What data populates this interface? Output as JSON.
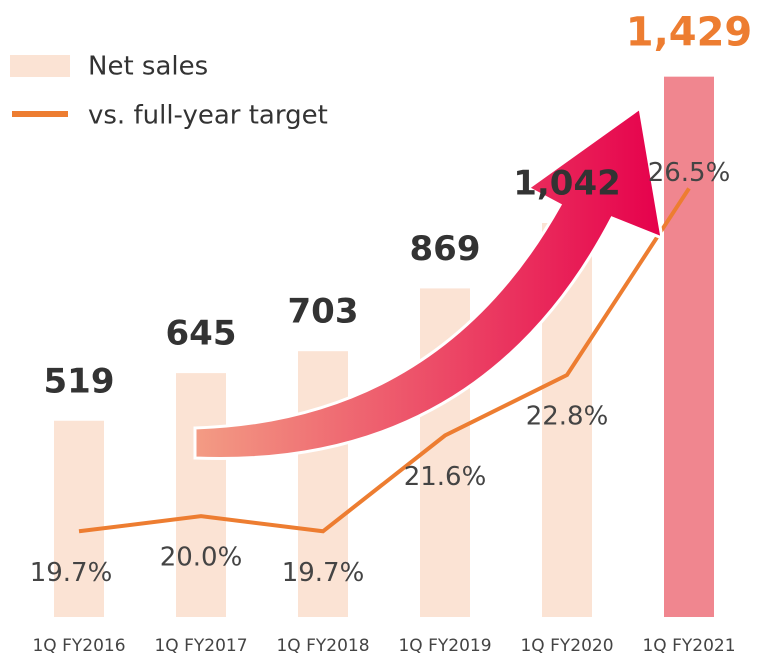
{
  "chart_data": {
    "type": "bar",
    "categories": [
      "1Q FY2016",
      "1Q FY2017",
      "1Q FY2018",
      "1Q FY2019",
      "1Q FY2020",
      "1Q FY2021"
    ],
    "series": [
      {
        "name": "Net sales",
        "color": "#fbe3d4",
        "colors": [
          "#fbe3d4",
          "#fbe3d4",
          "#fbe3d4",
          "#fbe3d4",
          "#fbe3d4",
          "#f0868f"
        ],
        "label_colors": [
          "#333333",
          "#333333",
          "#333333",
          "#333333",
          "#333333",
          "#ed7d31"
        ],
        "values": [
          519,
          645,
          703,
          869,
          1042,
          1429
        ],
        "value_labels": [
          "519",
          "645",
          "703",
          "869",
          "1,042",
          "1,429"
        ]
      },
      {
        "name": "vs. full-year target",
        "color": "#ed7d31",
        "axis": "y2",
        "values": [
          19.7,
          20.0,
          19.7,
          21.6,
          22.8,
          26.5
        ],
        "value_labels": [
          "19.7%",
          "20.0%",
          "19.7%",
          "21.6%",
          "22.8%",
          "26.5%"
        ]
      }
    ],
    "ylim": [
      0,
      1600
    ],
    "y2lim": [
      18,
      30
    ]
  }
}
